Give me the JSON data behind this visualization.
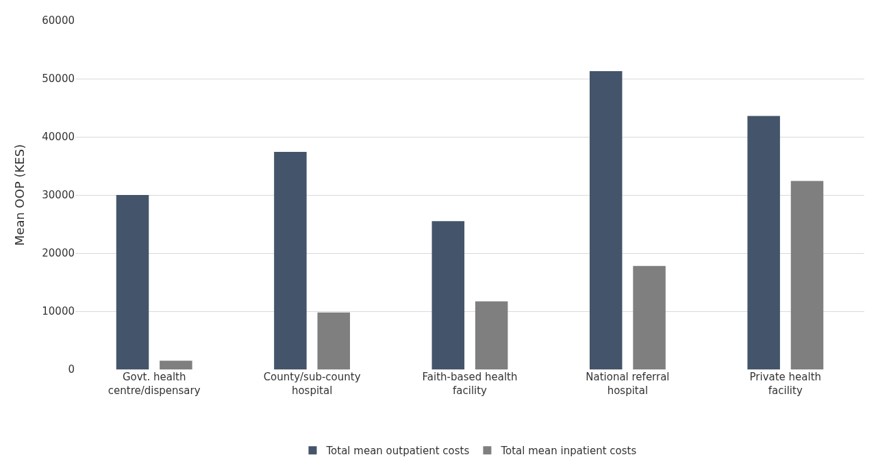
{
  "chart_data": {
    "type": "bar",
    "ylabel": "Mean OOP (KES)",
    "categories": [
      "Govt. health centre/dispensary",
      "County/sub-county hospital",
      "Faith-based health facility",
      "National referral hospital",
      "Private health facility"
    ],
    "series": [
      {
        "name": "Total mean outpatient costs",
        "color": "#44546a",
        "values": [
          30000,
          37400,
          25500,
          51300,
          43600
        ]
      },
      {
        "name": "Total mean inpatient costs",
        "color": "#7f7f7f",
        "values": [
          1500,
          9800,
          11700,
          17800,
          32400
        ]
      }
    ],
    "ylim": [
      0,
      60000
    ],
    "yticks": [
      0,
      10000,
      20000,
      30000,
      40000,
      50000,
      60000
    ],
    "grid": "y",
    "legend": "bottom"
  }
}
